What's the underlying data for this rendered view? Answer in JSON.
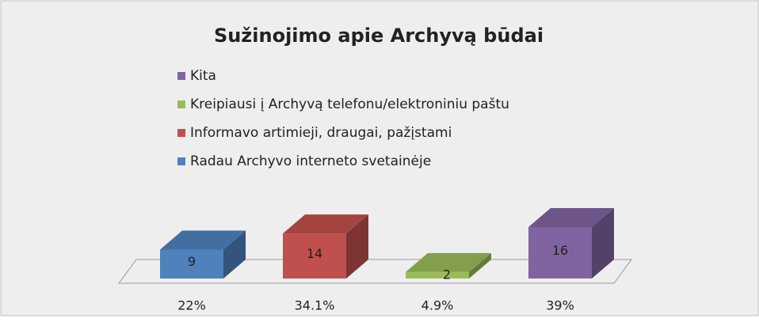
{
  "chart_data": {
    "type": "bar3d",
    "title": "Sužinojimo apie Archyvą būdai",
    "categories": [
      "22%",
      "34.1%",
      "4.9%",
      "39%"
    ],
    "series": [
      {
        "name": "Radau Archyvo interneto svetainėje",
        "color": "#4f81bd",
        "values": [
          9,
          null,
          null,
          null
        ]
      },
      {
        "name": "Informavo artimieji, draugai, pažįstami",
        "color": "#c0504d",
        "values": [
          null,
          14,
          null,
          null
        ]
      },
      {
        "name": "Kreipiausi į Archyvą telefonu/elektroniniu paštu",
        "color": "#9bbb59",
        "values": [
          null,
          null,
          2,
          null
        ]
      },
      {
        "name": "Kita",
        "color": "#8064a2",
        "values": [
          null,
          null,
          null,
          16
        ]
      }
    ],
    "legend": "top-left"
  }
}
